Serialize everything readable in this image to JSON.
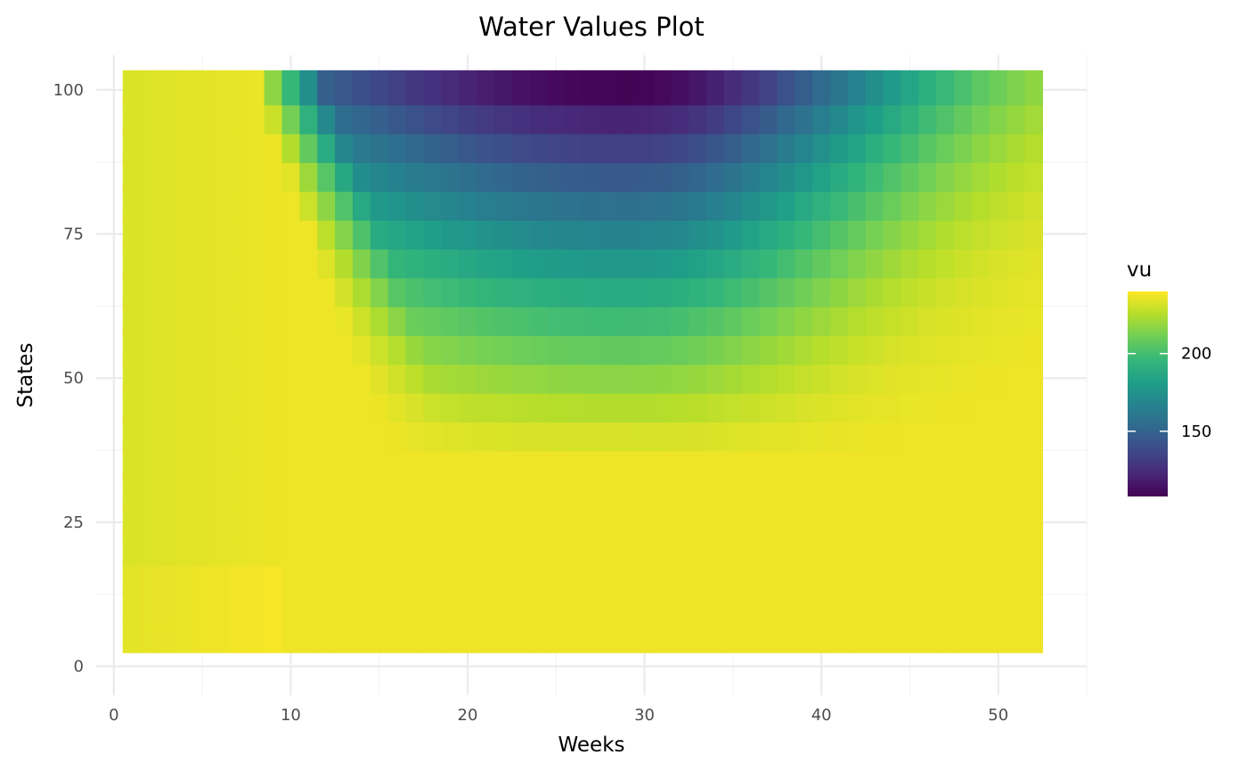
{
  "chart_data": {
    "type": "heatmap",
    "title": "Water Values Plot",
    "xlabel": "Weeks",
    "ylabel": "States",
    "xlim": [
      -1,
      55
    ],
    "ylim": [
      -5,
      106
    ],
    "xticks": [
      0,
      10,
      20,
      30,
      40,
      50
    ],
    "yticks": [
      0,
      25,
      50,
      75,
      100
    ],
    "grid": true,
    "colormap": "viridis",
    "legend": {
      "title": "vu",
      "position": "right",
      "min": 108,
      "max": 240,
      "ticks": [
        150,
        200
      ]
    },
    "weeks": {
      "start": 1,
      "end": 52
    },
    "states": [
      5,
      10,
      15,
      20,
      25,
      30,
      35,
      40,
      45,
      50,
      55,
      60,
      65,
      70,
      75,
      80,
      85,
      90,
      95,
      100
    ],
    "value_model": {
      "description_note": "",
      "base": 237,
      "plateau_early": 232,
      "min_value": 108
    }
  },
  "colors": {
    "background": "#ffffff",
    "grid_major": "#ebebeb",
    "grid_minor": "#f4f4f4",
    "viridis": [
      "#440154",
      "#482878",
      "#3e4989",
      "#31688e",
      "#26828e",
      "#1f9e89",
      "#35b779",
      "#6ece58",
      "#b5de2b",
      "#fde725"
    ]
  }
}
